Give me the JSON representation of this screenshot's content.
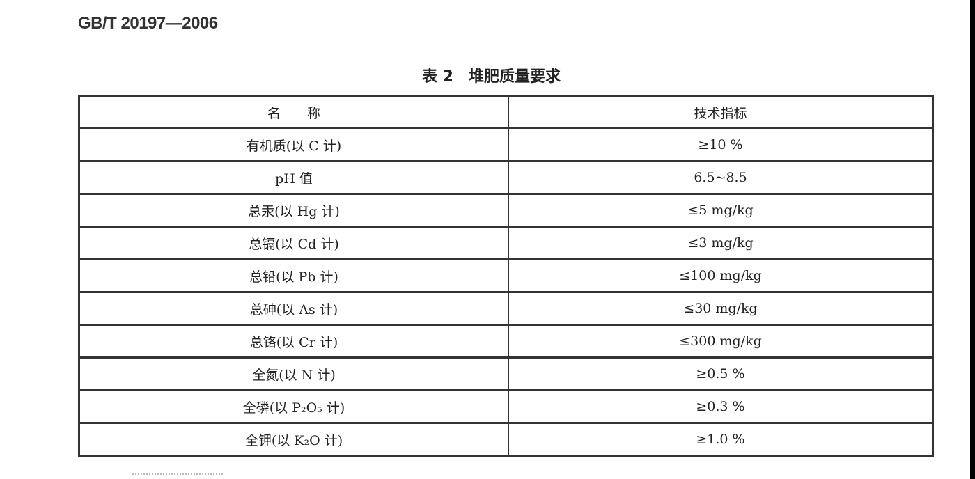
{
  "standard_id": "GB/T 20197—2006",
  "table": {
    "number": "表 2",
    "title": "堆肥质量要求",
    "headers": [
      "名　　称",
      "技术指标"
    ],
    "rows": [
      {
        "name": "有机质(以 C 计)",
        "value": "≥10 %"
      },
      {
        "name": "pH 值",
        "value": "6.5~8.5"
      },
      {
        "name": "总汞(以 Hg 计)",
        "value": "≤5 mg/kg"
      },
      {
        "name": "总镉(以 Cd 计)",
        "value": "≤3 mg/kg"
      },
      {
        "name": "总铅(以 Pb 计)",
        "value": "≤100 mg/kg"
      },
      {
        "name": "总砷(以 As 计)",
        "value": "≤30 mg/kg"
      },
      {
        "name": "总铬(以 Cr 计)",
        "value": "≤300 mg/kg"
      },
      {
        "name": "全氮(以 N 计)",
        "value": "≥0.5 %"
      },
      {
        "name": "全磷(以 P₂O₅ 计)",
        "value": "≥0.3 %"
      },
      {
        "name": "全钾(以 K₂O 计)",
        "value": "≥1.0 %"
      }
    ]
  }
}
